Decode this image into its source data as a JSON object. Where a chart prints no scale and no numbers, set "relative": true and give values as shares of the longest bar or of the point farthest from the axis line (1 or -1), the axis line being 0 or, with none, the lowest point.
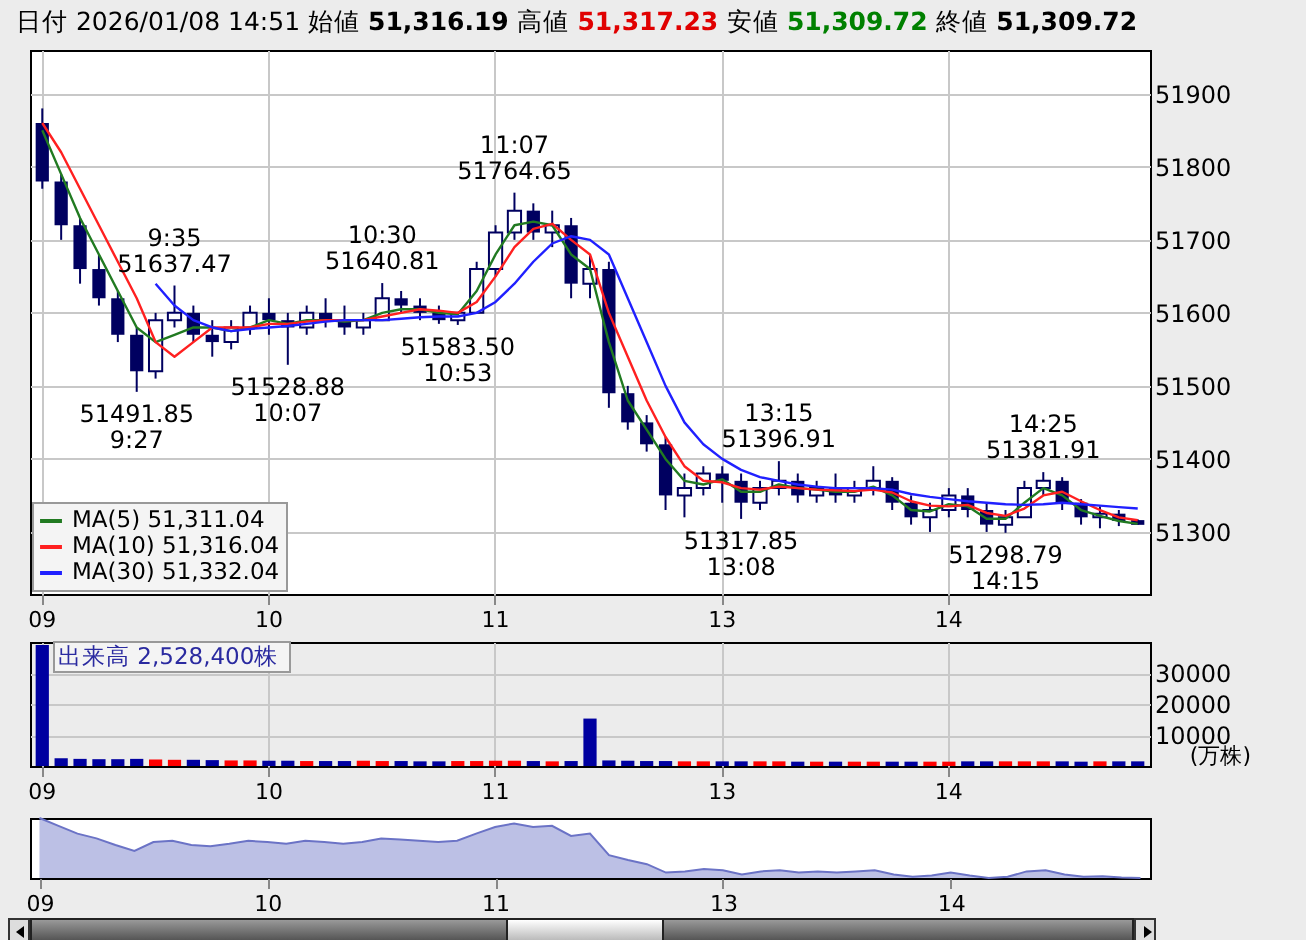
{
  "chart_data": [
    {
      "type": "candlestick",
      "title": "日付 2026/01/08 14:51 始値 51,316.19 高値 51,317.23 安値 51,309.72 終値 51,309.72",
      "color": "#000060",
      "categories": [
        "09",
        null,
        null,
        null,
        null,
        null,
        null,
        null,
        null,
        null,
        null,
        null,
        "10",
        null,
        null,
        null,
        null,
        null,
        null,
        null,
        null,
        null,
        null,
        null,
        "11",
        null,
        null,
        null,
        null,
        null,
        null,
        null,
        null,
        null,
        null,
        null,
        "13",
        null,
        null,
        null,
        null,
        null,
        null,
        null,
        null,
        null,
        null,
        null,
        "14",
        null,
        null,
        null,
        null,
        null,
        null,
        null,
        null,
        null,
        null
      ],
      "ohlc": [
        [
          51860,
          51880,
          51770,
          51780
        ],
        [
          51780,
          51790,
          51700,
          51720
        ],
        [
          51720,
          51730,
          51640,
          51660
        ],
        [
          51660,
          51680,
          51610,
          51620
        ],
        [
          51620,
          51630,
          51560,
          51570
        ],
        [
          51570,
          51580,
          51491.85,
          51520
        ],
        [
          51520,
          51600,
          51510,
          51590
        ],
        [
          51590,
          51637.47,
          51580,
          51600
        ],
        [
          51600,
          51610,
          51560,
          51570
        ],
        [
          51570,
          51590,
          51540,
          51560
        ],
        [
          51560,
          51590,
          51550,
          51580
        ],
        [
          51580,
          51610,
          51570,
          51600
        ],
        [
          51600,
          51620,
          51570,
          51590
        ],
        [
          51590,
          51600,
          51528.88,
          51580
        ],
        [
          51580,
          51610,
          51570,
          51600
        ],
        [
          51600,
          51620,
          51580,
          51590
        ],
        [
          51590,
          51610,
          51570,
          51580
        ],
        [
          51580,
          51600,
          51570,
          51590
        ],
        [
          51590,
          51640.81,
          51590,
          51620
        ],
        [
          51620,
          51630,
          51600,
          51610
        ],
        [
          51610,
          51620,
          51590,
          51600
        ],
        [
          51600,
          51610,
          51585,
          51590
        ],
        [
          51590,
          51600,
          51583.5,
          51600
        ],
        [
          51600,
          51670,
          51600,
          51660
        ],
        [
          51660,
          51720,
          51650,
          51710
        ],
        [
          51710,
          51764.65,
          51700,
          51740
        ],
        [
          51740,
          51750,
          51700,
          51710
        ],
        [
          51710,
          51740,
          51690,
          51720
        ],
        [
          51720,
          51730,
          51620,
          51640
        ],
        [
          51640,
          51680,
          51620,
          51660
        ],
        [
          51660,
          51670,
          51470,
          51490
        ],
        [
          51490,
          51500,
          51440,
          51450
        ],
        [
          51450,
          51460,
          51410,
          51420
        ],
        [
          51420,
          51430,
          51330,
          51350
        ],
        [
          51350,
          51380,
          51320,
          51360
        ],
        [
          51360,
          51390,
          51350,
          51380
        ],
        [
          51380,
          51390,
          51340,
          51370
        ],
        [
          51370,
          51380,
          51317.85,
          51340
        ],
        [
          51340,
          51370,
          51330,
          51360
        ],
        [
          51360,
          51396.91,
          51350,
          51370
        ],
        [
          51370,
          51380,
          51340,
          51350
        ],
        [
          51350,
          51370,
          51340,
          51360
        ],
        [
          51360,
          51380,
          51340,
          51350
        ],
        [
          51350,
          51370,
          51340,
          51360
        ],
        [
          51360,
          51390,
          51350,
          51370
        ],
        [
          51370,
          51375,
          51330,
          51340
        ],
        [
          51340,
          51350,
          51310,
          51320
        ],
        [
          51320,
          51340,
          51300,
          51330
        ],
        [
          51330,
          51360,
          51320,
          51350
        ],
        [
          51350,
          51360,
          51320,
          51330
        ],
        [
          51330,
          51340,
          51300,
          51310
        ],
        [
          51310,
          51330,
          51298.79,
          51320
        ],
        [
          51320,
          51370,
          51320,
          51360
        ],
        [
          51360,
          51381.91,
          51350,
          51370
        ],
        [
          51370,
          51375,
          51330,
          51340
        ],
        [
          51340,
          51345,
          51310,
          51320
        ],
        [
          51320,
          51335,
          51305,
          51325
        ],
        [
          51325,
          51330,
          51308,
          51315
        ],
        [
          51316.19,
          51317.23,
          51309.72,
          51309.72
        ]
      ],
      "series": [
        {
          "type": "line",
          "name": "MA(5) 51,311.04",
          "color": "#217a21",
          "values": [
            51850,
            51790,
            51730,
            51680,
            51630,
            51580,
            51560,
            51570,
            51580,
            51580,
            51575,
            51580,
            51590,
            51585,
            51590,
            51590,
            51588,
            51590,
            51600,
            51605,
            51605,
            51600,
            51598,
            51630,
            51680,
            51720,
            51725,
            51720,
            51680,
            51660,
            51560,
            51480,
            51440,
            51400,
            51370,
            51365,
            51372,
            51355,
            51355,
            51365,
            51360,
            51358,
            51355,
            51355,
            51362,
            51350,
            51330,
            51328,
            51338,
            51335,
            51318,
            51318,
            51340,
            51360,
            51350,
            51330,
            51322,
            51315,
            51311
          ]
        },
        {
          "type": "line",
          "name": "MA(10) 51,316.04",
          "color": "#ff2020",
          "values": [
            51860,
            51820,
            51770,
            51720,
            51670,
            51620,
            51560,
            51540,
            51560,
            51580,
            51580,
            51580,
            51585,
            51585,
            51588,
            51590,
            51590,
            51590,
            51595,
            51600,
            51605,
            51603,
            51600,
            51615,
            51650,
            51690,
            51715,
            51722,
            51700,
            51680,
            51600,
            51540,
            51480,
            51430,
            51390,
            51370,
            51368,
            51360,
            51358,
            51362,
            51360,
            51358,
            51357,
            51356,
            51358,
            51354,
            51342,
            51336,
            51335,
            51337,
            51326,
            51322,
            51332,
            51350,
            51355,
            51342,
            51330,
            51320,
            51316
          ]
        },
        {
          "type": "line",
          "name": "MA(30) 51,332.04",
          "color": "#2020ff",
          "values": [
            null,
            null,
            null,
            null,
            null,
            null,
            51640,
            51610,
            51590,
            51580,
            51575,
            51578,
            51580,
            51582,
            51585,
            51588,
            51590,
            51590,
            51590,
            51592,
            51594,
            51595,
            51595,
            51600,
            51615,
            51640,
            51670,
            51695,
            51705,
            51700,
            51680,
            51620,
            51560,
            51500,
            51450,
            51420,
            51400,
            51385,
            51375,
            51370,
            51365,
            51362,
            51360,
            51360,
            51360,
            51358,
            51352,
            51348,
            51345,
            51342,
            51340,
            51338,
            51337,
            51338,
            51340,
            51338,
            51336,
            51334,
            51332
          ]
        }
      ],
      "ylim": [
        51215,
        51960
      ],
      "yticks": [
        51300,
        51400,
        51500,
        51600,
        51700,
        51800,
        51900
      ],
      "grid": true,
      "legend": "bottom left",
      "annotations": [
        {
          "text": "9:35",
          "y": 51637.47
        },
        {
          "text": "51637.47",
          "y": 51637.47
        },
        {
          "text": "51491.85",
          "y": 51491.85
        },
        {
          "text": "9:27",
          "y": 51491.85
        },
        {
          "text": "51528.88",
          "y": 51528.88
        },
        {
          "text": "10:07",
          "y": 51528.88
        },
        {
          "text": "10:30",
          "y": 51640.81
        },
        {
          "text": "51640.81",
          "y": 51640.81
        },
        {
          "text": "51583.50",
          "y": 51583.5
        },
        {
          "text": "10:53",
          "y": 51583.5
        },
        {
          "text": "11:07",
          "y": 51764.65
        },
        {
          "text": "51764.65",
          "y": 51764.65
        },
        {
          "text": "13:15",
          "y": 51396.91
        },
        {
          "text": "51396.91",
          "y": 51396.91
        },
        {
          "text": "51317.85",
          "y": 51317.85
        },
        {
          "text": "13:08",
          "y": 51317.85
        },
        {
          "text": "14:25",
          "y": 51381.91
        },
        {
          "text": "51381.91",
          "y": 51381.91
        },
        {
          "text": "51298.79",
          "y": 51298.79
        },
        {
          "text": "14:15",
          "y": 51298.79
        }
      ]
    },
    {
      "type": "bar",
      "title": "出来高  2,528,400株",
      "ylabel": "(万株)",
      "categories": [
        "09",
        null,
        null,
        null,
        null,
        null,
        null,
        null,
        null,
        null,
        null,
        null,
        "10",
        null,
        null,
        null,
        null,
        null,
        null,
        null,
        null,
        null,
        null,
        null,
        "11",
        null,
        null,
        null,
        null,
        null,
        null,
        null,
        null,
        null,
        null,
        null,
        "13",
        null,
        null,
        null,
        null,
        null,
        null,
        null,
        null,
        null,
        null,
        null,
        "14",
        null,
        null,
        null,
        null,
        null,
        null,
        null,
        null,
        null,
        null
      ],
      "values": [
        39000,
        2500,
        2300,
        2200,
        2200,
        2300,
        2100,
        2000,
        2000,
        1900,
        1800,
        1800,
        1700,
        1700,
        1600,
        1600,
        1600,
        1700,
        1600,
        1600,
        1500,
        1500,
        1600,
        1600,
        1700,
        1700,
        1600,
        1500,
        1600,
        15300,
        1800,
        1700,
        1600,
        1600,
        1500,
        1500,
        1500,
        1500,
        1500,
        1500,
        1400,
        1400,
        1400,
        1400,
        1400,
        1400,
        1400,
        1400,
        1400,
        1500,
        1500,
        1500,
        1500,
        1500,
        1500,
        1400,
        1500,
        1500,
        1500
      ],
      "colors": [
        "#0000a0",
        "#0000a0",
        "#0000a0",
        "#0000a0",
        "#0000a0",
        "#0000a0",
        "#ff0000",
        "#ff0000",
        "#0000a0",
        "#0000a0",
        "#ff0000",
        "#ff0000",
        "#0000a0",
        "#0000a0",
        "#ff0000",
        "#0000a0",
        "#0000a0",
        "#ff0000",
        "#ff0000",
        "#0000a0",
        "#0000a0",
        "#0000a0",
        "#ff0000",
        "#ff0000",
        "#ff0000",
        "#ff0000",
        "#0000a0",
        "#ff0000",
        "#0000a0",
        "#0000a0",
        "#0000a0",
        "#0000a0",
        "#0000a0",
        "#0000a0",
        "#ff0000",
        "#ff0000",
        "#0000a0",
        "#0000a0",
        "#ff0000",
        "#ff0000",
        "#0000a0",
        "#ff0000",
        "#0000a0",
        "#ff0000",
        "#ff0000",
        "#0000a0",
        "#0000a0",
        "#ff0000",
        "#ff0000",
        "#0000a0",
        "#0000a0",
        "#ff0000",
        "#ff0000",
        "#ff0000",
        "#0000a0",
        "#0000a0",
        "#ff0000",
        "#0000a0",
        "#0000a0"
      ],
      "ylim": [
        0,
        40000
      ],
      "yticks": [
        10000,
        20000,
        30000
      ],
      "grid": true
    },
    {
      "type": "area",
      "relative": true,
      "color": "#6b73c6",
      "tick_labels": "x",
      "categories": [
        "09",
        null,
        null,
        null,
        null,
        null,
        null,
        null,
        null,
        null,
        null,
        null,
        "10",
        null,
        null,
        null,
        null,
        null,
        null,
        null,
        null,
        null,
        null,
        null,
        "11",
        null,
        null,
        null,
        null,
        null,
        null,
        null,
        null,
        null,
        null,
        null,
        "13",
        null,
        null,
        null,
        null,
        null,
        null,
        null,
        null,
        null,
        null,
        null,
        "14",
        null,
        null,
        null,
        null,
        null,
        null,
        null,
        null,
        null,
        null
      ],
      "values": [
        1.0,
        0.87,
        0.74,
        0.66,
        0.55,
        0.45,
        0.6,
        0.62,
        0.55,
        0.53,
        0.57,
        0.62,
        0.6,
        0.57,
        0.62,
        0.6,
        0.57,
        0.6,
        0.66,
        0.64,
        0.62,
        0.6,
        0.62,
        0.74,
        0.85,
        0.91,
        0.85,
        0.87,
        0.7,
        0.74,
        0.38,
        0.3,
        0.23,
        0.09,
        0.11,
        0.15,
        0.13,
        0.06,
        0.11,
        0.13,
        0.09,
        0.11,
        0.09,
        0.11,
        0.13,
        0.06,
        0.02,
        0.04,
        0.09,
        0.04,
        0.0,
        0.02,
        0.11,
        0.13,
        0.06,
        0.02,
        0.03,
        0.01,
        0.0
      ]
    }
  ]
}
